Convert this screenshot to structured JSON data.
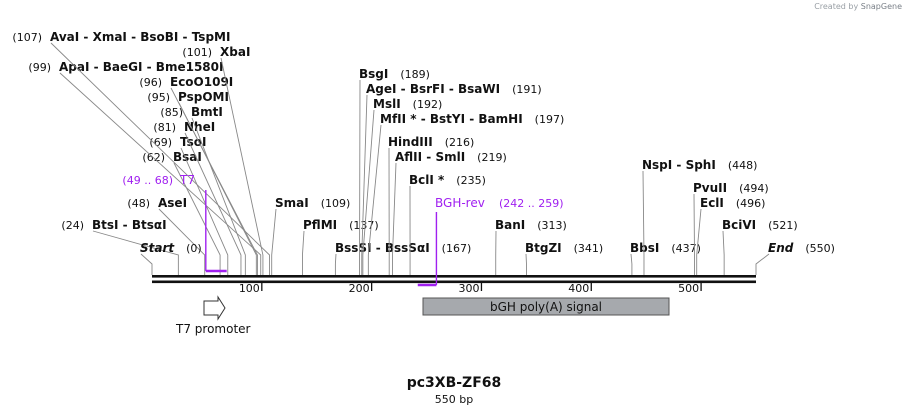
{
  "app": {
    "credit_prefix": "Created by",
    "credit_brand": "SnapGene"
  },
  "plasmid": {
    "name": "pc3XB-ZF68",
    "size_label": "550 bp",
    "length_bp": 550
  },
  "axis": {
    "start_bp": 0,
    "end_bp": 550,
    "ticks": [
      100,
      200,
      300,
      400,
      500
    ]
  },
  "endpoints": [
    {
      "name": "Start",
      "pos": 0,
      "pos_label": "(0)"
    },
    {
      "name": "End",
      "pos": 550,
      "pos_label": "(550)"
    }
  ],
  "sites": [
    {
      "name": "BtsI  -  BtsαI",
      "pos": 24,
      "pos_label": "(24)"
    },
    {
      "name": "AseI",
      "pos": 48,
      "pos_label": "(48)"
    },
    {
      "name": "BsaI",
      "pos": 62,
      "pos_label": "(62)"
    },
    {
      "name": "TsoI",
      "pos": 69,
      "pos_label": "(69)"
    },
    {
      "name": "NheI",
      "pos": 81,
      "pos_label": "(81)"
    },
    {
      "name": "BmtI",
      "pos": 85,
      "pos_label": "(85)"
    },
    {
      "name": "PspOMI",
      "pos": 95,
      "pos_label": "(95)"
    },
    {
      "name": "EcoO109I",
      "pos": 96,
      "pos_label": "(96)"
    },
    {
      "name": "ApaI  -  BaeGI  -  Bme1580I",
      "pos": 99,
      "pos_label": "(99)"
    },
    {
      "name": "XbaI",
      "pos": 101,
      "pos_label": "(101)"
    },
    {
      "name": "AvaI  -  XmaI  -  BsoBI  -  TspMI",
      "pos": 107,
      "pos_label": "(107)"
    },
    {
      "name": "SmaI",
      "pos": 109,
      "pos_label": "(109)"
    },
    {
      "name": "PflMI",
      "pos": 137,
      "pos_label": "(137)"
    },
    {
      "name": "BssSI  -  BssSαI",
      "pos": 167,
      "pos_label": "(167)"
    },
    {
      "name": "BsgI",
      "pos": 189,
      "pos_label": "(189)"
    },
    {
      "name": "AgeI  -  BsrFI  -  BsaWI",
      "pos": 191,
      "pos_label": "(191)"
    },
    {
      "name": "MslI",
      "pos": 192,
      "pos_label": "(192)"
    },
    {
      "name": "MfII *  -  BstYI  -  BamHI",
      "pos": 197,
      "pos_label": "(197)"
    },
    {
      "name": "HindIII",
      "pos": 216,
      "pos_label": "(216)"
    },
    {
      "name": "AflII  -  SmlI",
      "pos": 219,
      "pos_label": "(219)"
    },
    {
      "name": "BclI *",
      "pos": 235,
      "pos_label": "(235)"
    },
    {
      "name": "BanI",
      "pos": 313,
      "pos_label": "(313)"
    },
    {
      "name": "BtgZI",
      "pos": 341,
      "pos_label": "(341)"
    },
    {
      "name": "BbsI",
      "pos": 437,
      "pos_label": "(437)"
    },
    {
      "name": "NspI  -  SphI",
      "pos": 448,
      "pos_label": "(448)"
    },
    {
      "name": "PvuII",
      "pos": 494,
      "pos_label": "(494)"
    },
    {
      "name": "EclI",
      "pos": 496,
      "pos_label": "(496)"
    },
    {
      "name": "BciVI",
      "pos": 521,
      "pos_label": "(521)"
    }
  ],
  "primers": [
    {
      "name": "T7",
      "range_label": "(49 .. 68)",
      "start": 49,
      "end": 68,
      "strand": "forward",
      "color": "#a020f0"
    },
    {
      "name": "BGH-rev",
      "range_label": "(242 .. 259)",
      "start": 242,
      "end": 259,
      "strand": "reverse",
      "color": "#a020f0"
    }
  ],
  "features": [
    {
      "name": "T7 promoter",
      "start": 49,
      "end": 67,
      "kind": "promoter",
      "color": "#ffffff"
    },
    {
      "name": "bGH poly(A) signal",
      "start": 246,
      "end": 470,
      "kind": "polyA",
      "color": "#a6a9ad"
    }
  ]
}
